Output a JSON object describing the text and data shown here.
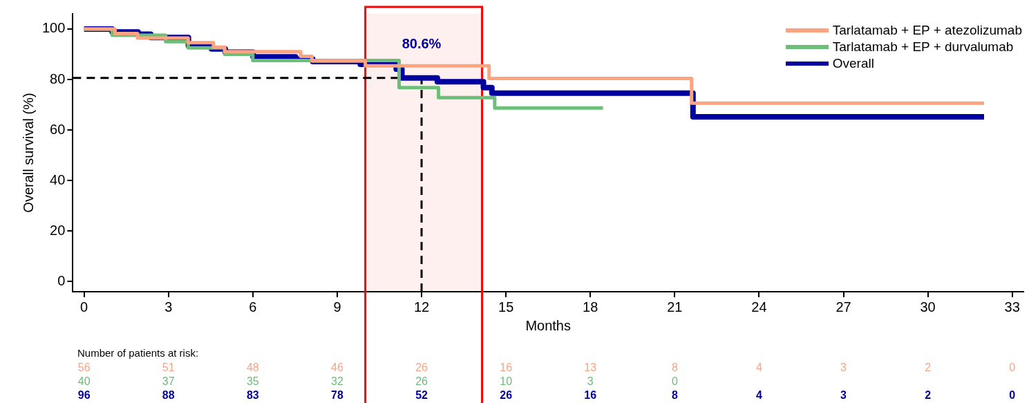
{
  "chart_data": {
    "type": "step",
    "xlabel": "Months",
    "ylabel": "Overall survival (%)",
    "xlim": [
      -0.4,
      33.4
    ],
    "ylim": [
      -4,
      106
    ],
    "xticks": [
      0,
      3,
      6,
      9,
      12,
      15,
      18,
      21,
      24,
      27,
      30,
      33
    ],
    "yticks": [
      0,
      20,
      40,
      60,
      80,
      100
    ],
    "grid": false,
    "legend": "top right",
    "marker": "none",
    "line_style": "solid",
    "series": [
      {
        "name": "Tarlatamab + EP + atezolizumab",
        "color": "#fca380",
        "x": [
          0,
          1.1,
          1.9,
          3.7,
          4.6,
          5.0,
          7.7,
          8.1,
          10.0,
          14.4,
          21.6,
          32.0
        ],
        "values": [
          100,
          98.2,
          96.4,
          94.6,
          92.8,
          91.0,
          89.2,
          87.3,
          85.4,
          80.4,
          70.6,
          70.6
        ]
      },
      {
        "name": "Tarlatamab + EP + durvalumab",
        "color": "#6cbf79",
        "x": [
          0,
          1.0,
          2.9,
          3.7,
          5.0,
          6.0,
          11.2,
          12.6,
          14.6,
          18.45
        ],
        "values": [
          100,
          97.5,
          95,
          92.5,
          90,
          87.5,
          76.8,
          72.8,
          68.7,
          68.7
        ]
      },
      {
        "name": "Overall",
        "color": "#0000a0",
        "x": [
          0,
          1.0,
          1.92,
          2.37,
          3.71,
          4.53,
          5.02,
          6.01,
          7.52,
          8.13,
          9.82,
          11.1,
          11.3,
          12.56,
          14.2,
          14.5,
          21.65,
          32.0
        ],
        "values": [
          100,
          98.8,
          97.9,
          96.6,
          93.4,
          92.1,
          90.8,
          89.0,
          88.1,
          87.1,
          86.0,
          84.1,
          80.6,
          79.1,
          76.8,
          74.6,
          65.2,
          65.2
        ]
      }
    ],
    "ref_lines": [
      {
        "axis": "y",
        "value": 80.6,
        "color": "#000000",
        "line_style": "dashed"
      },
      {
        "axis": "x",
        "value": 12,
        "color": "#000000",
        "line_style": "dashed"
      }
    ],
    "bands": [
      {
        "axis": "x",
        "from": 10.0,
        "to": 14.15,
        "color": "#ff0000"
      }
    ],
    "annotations": [
      {
        "text": "80.6%",
        "x": 12,
        "y": 80.6
      },
      "Number of patients at risk:",
      "56 51 48 46 26 16 13 8 4 3 2 0",
      "40 37 35 32 26 10 3 0",
      "96 88 83 78 52 26 16 8 4 3 2 0"
    ]
  }
}
